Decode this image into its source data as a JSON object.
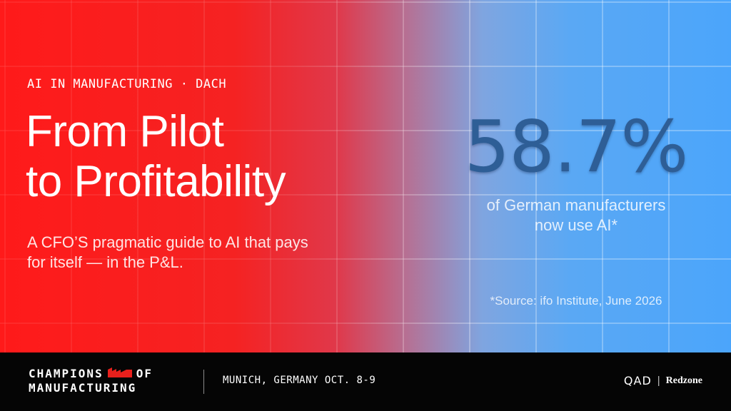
{
  "hero": {
    "eyebrow": "AI IN MANUFACTURING · DACH",
    "headline_line1": "From Pilot",
    "headline_line2": "to Profitability",
    "subtitle": "A CFO’S pragmatic guide to AI that pays for itself — in the P&L.",
    "background_colors": {
      "left": "#ff1a1a",
      "right": "#4ba5fb"
    }
  },
  "stat": {
    "value": "58.7%",
    "caption_line1": "of German manufacturers",
    "caption_line2": "now use AI*",
    "source": "*Source: ifo Institute, June 2026",
    "value_color": "#2e5e96"
  },
  "footer": {
    "brand_line1": "CHAMPIONS",
    "brand_line1_suffix": "OF",
    "brand_line2": "MANUFACTURING",
    "brand_mark_icon": "red-factory-icon",
    "brand_mark_color": "#e8201c",
    "event": "MUNICH, GERMANY OCT. 8-9",
    "partner1": "QAD",
    "partner_separator": "|",
    "partner2": "Redzone"
  }
}
